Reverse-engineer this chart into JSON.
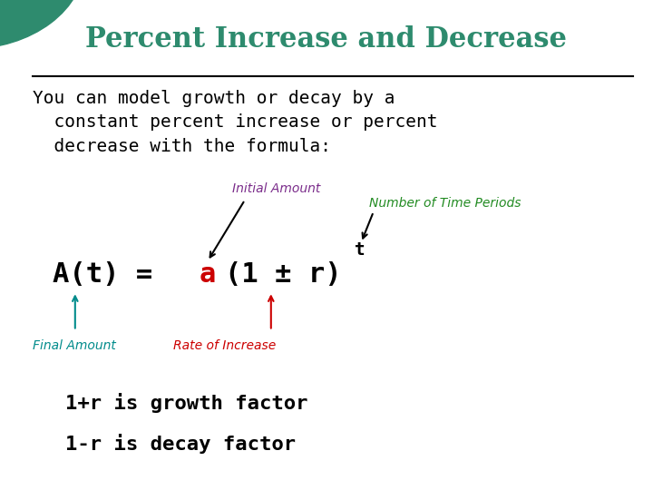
{
  "title": "Percent Increase and Decrease",
  "title_color": "#2E8B6E",
  "background_color": "#FFFFFF",
  "body_text": "You can model growth or decay by a\n  constant percent increase or percent\n  decrease with the formula:",
  "body_color": "#000000",
  "formula_black": "#000000",
  "formula_red": "#CC0000",
  "label_initial": "Initial Amount",
  "label_initial_color": "#7B2D8B",
  "label_nperiods": "Number of Time Periods",
  "label_nperiods_color": "#228B22",
  "label_final": "Final Amount",
  "label_final_color": "#008B8B",
  "label_rate": "Rate of Increase",
  "label_rate_color": "#CC0000",
  "bottom_line1": "1+r is growth factor",
  "bottom_line2": "1-r is decay factor",
  "bottom_color": "#000000",
  "circle_color": "#2E8B6E",
  "line_color": "#000000"
}
